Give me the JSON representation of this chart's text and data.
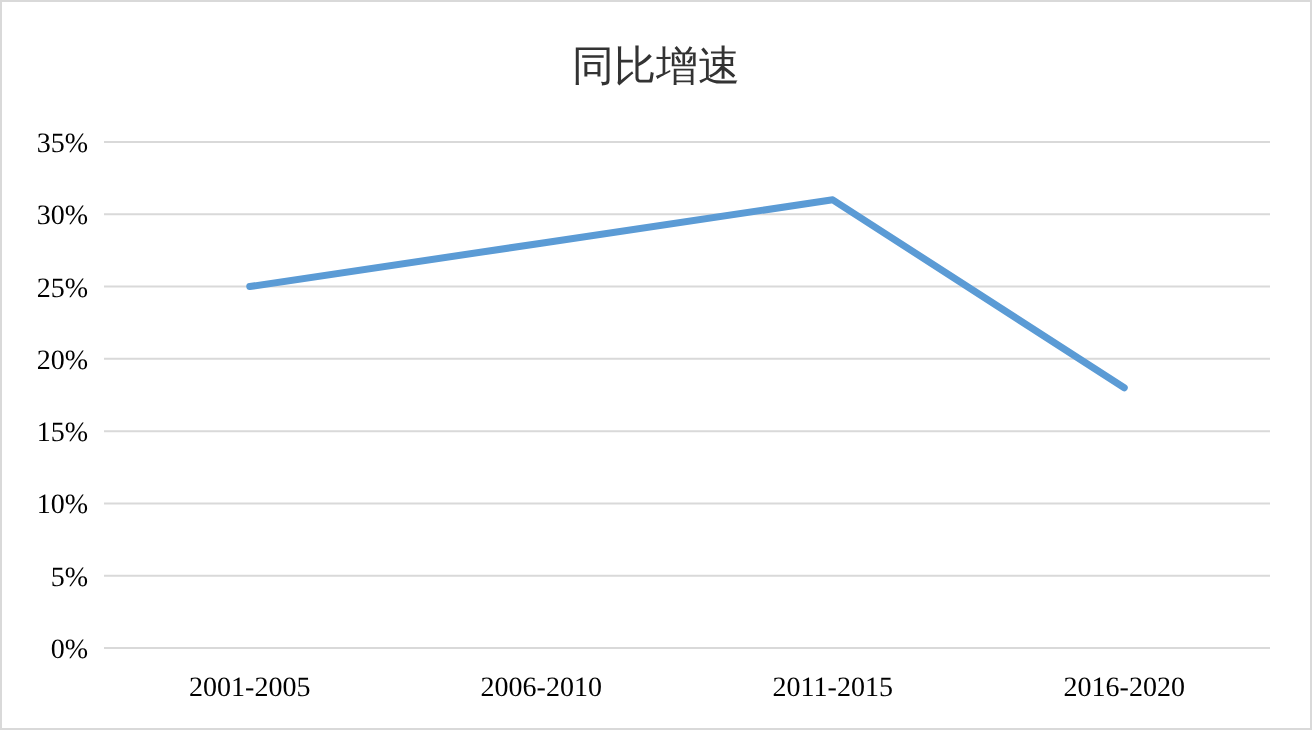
{
  "chart_data": {
    "type": "line",
    "title": "同比增速",
    "categories": [
      "2001-2005",
      "2006-2010",
      "2011-2015",
      "2016-2020"
    ],
    "series": [
      {
        "color": "#5b9bd5",
        "values": [
          25,
          28,
          31,
          18
        ]
      }
    ],
    "ylim": [
      0,
      35
    ],
    "yticks": [
      {
        "value": 0,
        "label": "0%"
      },
      {
        "value": 5,
        "label": "5%"
      },
      {
        "value": 10,
        "label": "10%"
      },
      {
        "value": 15,
        "label": "15%"
      },
      {
        "value": 20,
        "label": "20%"
      },
      {
        "value": 25,
        "label": "25%"
      },
      {
        "value": 30,
        "label": "30%"
      },
      {
        "value": 35,
        "label": "35%"
      }
    ],
    "grid": "y",
    "marker": "none",
    "line_style": "solid"
  }
}
